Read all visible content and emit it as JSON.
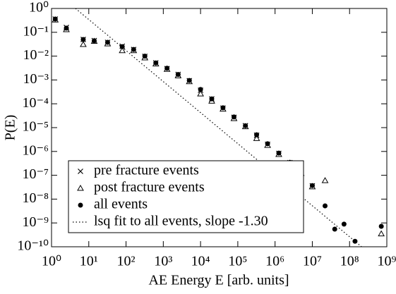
{
  "chart_data": {
    "type": "scatter",
    "x_label": "AE Energy E [arb. units]",
    "y_label": "P(E)",
    "log_x": true,
    "log_y": true,
    "xlim": [
      1,
      1000000000
    ],
    "ylim": [
      1e-10,
      1
    ],
    "xticks": [
      {
        "value": 1,
        "label": "10⁰"
      },
      {
        "value": 10,
        "label": "10¹"
      },
      {
        "value": 100,
        "label": "10²"
      },
      {
        "value": 1000,
        "label": "10³"
      },
      {
        "value": 10000,
        "label": "10⁴"
      },
      {
        "value": 100000,
        "label": "10⁵"
      },
      {
        "value": 1000000,
        "label": "10⁶"
      },
      {
        "value": 10000000,
        "label": "10⁷"
      },
      {
        "value": 100000000,
        "label": "10⁸"
      },
      {
        "value": 1000000000,
        "label": "10⁹"
      }
    ],
    "yticks": [
      {
        "value": 1e-10,
        "label": "10⁻¹⁰"
      },
      {
        "value": 1e-09,
        "label": "10⁻⁹"
      },
      {
        "value": 1e-08,
        "label": "10⁻⁸"
      },
      {
        "value": 1e-07,
        "label": "10⁻⁷"
      },
      {
        "value": 1e-06,
        "label": "10⁻⁶"
      },
      {
        "value": 1e-05,
        "label": "10⁻⁵"
      },
      {
        "value": 0.0001,
        "label": "10⁻⁴"
      },
      {
        "value": 0.001,
        "label": "10⁻³"
      },
      {
        "value": 0.01,
        "label": "10⁻²"
      },
      {
        "value": 0.1,
        "label": "10⁻¹"
      },
      {
        "value": 1,
        "label": "10⁰"
      }
    ],
    "legend": "lower left",
    "series": [
      {
        "name": "pre fracture events",
        "marker": "x",
        "color": "#000000",
        "x": [
          1.26,
          2.5,
          7.1,
          14,
          32,
          79,
          160,
          320,
          630,
          1260,
          2500,
          5000,
          10000,
          20000,
          40000,
          79000,
          160000,
          320000,
          630000,
          1260000,
          2500000,
          5000000,
          10000000
        ],
        "values": [
          0.36,
          0.16,
          0.05,
          0.045,
          0.038,
          0.026,
          0.019,
          0.0098,
          0.0052,
          0.003,
          0.0017,
          0.00093,
          0.00037,
          0.00016,
          6.6e-05,
          2.7e-05,
          1.2e-05,
          4.8e-06,
          2e-06,
          8.3e-07,
          3.4e-07,
          1.3e-07,
          3.6e-08
        ]
      },
      {
        "name": "post fracture events",
        "marker": "triangle",
        "color": "#000000",
        "x": [
          1.26,
          2.5,
          7.1,
          14,
          32,
          79,
          160,
          320,
          630,
          1260,
          2500,
          5000,
          10000,
          20000,
          40000,
          79000,
          160000,
          320000,
          630000,
          1260000,
          2500000,
          5000000,
          10000000,
          22000000,
          710000000
        ],
        "values": [
          0.33,
          0.13,
          0.031,
          0.042,
          0.033,
          0.017,
          0.017,
          0.0085,
          0.0047,
          0.0028,
          0.0015,
          0.00085,
          0.00026,
          0.00013,
          6e-05,
          2.4e-05,
          1.1e-05,
          3.5e-06,
          1.8e-06,
          7.5e-07,
          3.2e-07,
          1.2e-07,
          3.3e-08,
          6e-08,
          3.5e-10
        ]
      },
      {
        "name": "all events",
        "marker": "circle",
        "color": "#000000",
        "x": [
          1.26,
          2.5,
          7.1,
          14,
          32,
          79,
          160,
          320,
          630,
          1260,
          2500,
          5000,
          10000,
          20000,
          40000,
          79000,
          160000,
          320000,
          630000,
          1260000,
          2500000,
          5000000,
          10000000,
          22000000,
          40000000,
          71000000,
          140000000,
          710000000
        ],
        "values": [
          0.36,
          0.15,
          0.05,
          0.044,
          0.038,
          0.025,
          0.019,
          0.01,
          0.0052,
          0.0031,
          0.0017,
          0.00095,
          0.0004,
          0.00016,
          6.8e-05,
          2.8e-05,
          1.2e-05,
          5e-06,
          2.1e-06,
          8.5e-07,
          3.5e-07,
          1.3e-07,
          3.7e-08,
          5.2e-09,
          5.5e-10,
          8.9e-10,
          1.7e-10,
          7.2e-10
        ]
      },
      {
        "name": "lsq fit to all events, slope -1.30",
        "marker": "dotted-line",
        "color": "#000000",
        "x": [
          4.4,
          210000000
        ],
        "values": [
          1,
          1e-10
        ]
      }
    ]
  }
}
